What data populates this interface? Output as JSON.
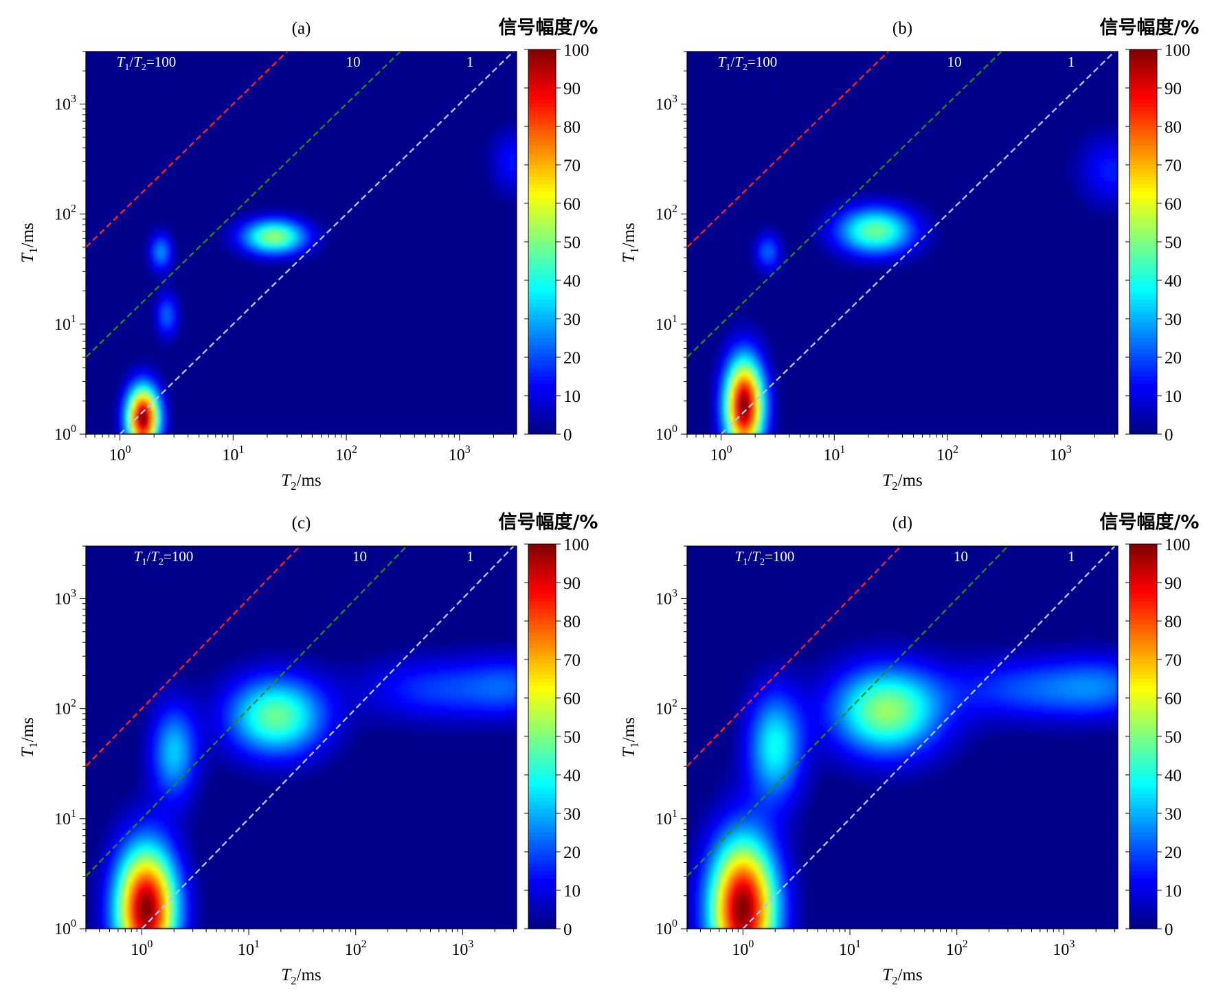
{
  "figure": {
    "colorbar": {
      "label": "信号幅度/%",
      "ticks": [
        "0",
        "10",
        "20",
        "30",
        "40",
        "50",
        "60",
        "70",
        "80",
        "90",
        "100"
      ],
      "range": [
        0,
        100
      ],
      "colormap": "jet"
    },
    "axis_labels": {
      "x_main": "T",
      "x_sub": "2",
      "x_unit": "/ms",
      "y_main": "T",
      "y_sub": "1",
      "y_unit": "/ms"
    },
    "ratio_labels": {
      "t1": "T",
      "sub1": "1",
      "slash": "/",
      "t2": "T",
      "sub2": "2",
      "eq100": "=100",
      "r10": "10",
      "r1": "1"
    },
    "tick_base": "10",
    "colors": {
      "background": "#00008b",
      "line_100": "#ff2020",
      "line_10": "#1e8c1e",
      "line_1": "#a8c8ff"
    }
  },
  "chart_data": [
    {
      "type": "heatmap",
      "title": "(a)",
      "x_scale": "log",
      "y_scale": "log",
      "xlim": [
        0.5,
        3200
      ],
      "ylim": [
        1,
        3000
      ],
      "xticks": [
        {
          "v": 1,
          "exp": "0"
        },
        {
          "v": 10,
          "exp": "1"
        },
        {
          "v": 100,
          "exp": "2"
        },
        {
          "v": 1000,
          "exp": "3"
        }
      ],
      "yticks": [
        {
          "v": 1,
          "exp": "0"
        },
        {
          "v": 10,
          "exp": "1"
        },
        {
          "v": 100,
          "exp": "2"
        },
        {
          "v": 1000,
          "exp": "3"
        }
      ],
      "ratio_lines": [
        100,
        10,
        1
      ],
      "peaks": [
        {
          "T2": 1.6,
          "T1": 1.4,
          "amplitude": 100,
          "spread_x": 0.1,
          "spread_y": 0.2
        },
        {
          "T2": 23,
          "T1": 62,
          "amplitude": 52,
          "spread_x": 0.2,
          "spread_y": 0.11
        },
        {
          "T2": 2.3,
          "T1": 45,
          "amplitude": 26,
          "spread_x": 0.07,
          "spread_y": 0.12
        },
        {
          "T2": 2.6,
          "T1": 12,
          "amplitude": 22,
          "spread_x": 0.07,
          "spread_y": 0.14
        },
        {
          "T2": 3000,
          "T1": 300,
          "amplitude": 14,
          "spread_x": 0.14,
          "spread_y": 0.2
        }
      ]
    },
    {
      "type": "heatmap",
      "title": "(b)",
      "x_scale": "log",
      "y_scale": "log",
      "xlim": [
        0.5,
        3200
      ],
      "ylim": [
        1,
        3000
      ],
      "xticks": [
        {
          "v": 1,
          "exp": "0"
        },
        {
          "v": 10,
          "exp": "1"
        },
        {
          "v": 100,
          "exp": "2"
        },
        {
          "v": 1000,
          "exp": "3"
        }
      ],
      "yticks": [
        {
          "v": 1,
          "exp": "0"
        },
        {
          "v": 10,
          "exp": "1"
        },
        {
          "v": 100,
          "exp": "2"
        },
        {
          "v": 1000,
          "exp": "3"
        }
      ],
      "ratio_lines": [
        100,
        10,
        1
      ],
      "peaks": [
        {
          "T2": 1.6,
          "T1": 1.8,
          "amplitude": 100,
          "spread_x": 0.12,
          "spread_y": 0.3
        },
        {
          "T2": 23,
          "T1": 70,
          "amplitude": 48,
          "spread_x": 0.24,
          "spread_y": 0.15
        },
        {
          "T2": 2.6,
          "T1": 45,
          "amplitude": 22,
          "spread_x": 0.08,
          "spread_y": 0.12
        },
        {
          "T2": 2800,
          "T1": 250,
          "amplitude": 15,
          "spread_x": 0.2,
          "spread_y": 0.22
        }
      ]
    },
    {
      "type": "heatmap",
      "title": "(c)",
      "x_scale": "log",
      "y_scale": "log",
      "xlim": [
        0.3,
        3200
      ],
      "ylim": [
        1,
        3000
      ],
      "xticks": [
        {
          "v": 1,
          "exp": "0"
        },
        {
          "v": 10,
          "exp": "1"
        },
        {
          "v": 100,
          "exp": "2"
        },
        {
          "v": 1000,
          "exp": "3"
        }
      ],
      "yticks": [
        {
          "v": 1,
          "exp": "0"
        },
        {
          "v": 10,
          "exp": "1"
        },
        {
          "v": 100,
          "exp": "2"
        },
        {
          "v": 1000,
          "exp": "3"
        }
      ],
      "ratio_lines": [
        100,
        10,
        1
      ],
      "peaks": [
        {
          "T2": 1.1,
          "T1": 1.5,
          "amplitude": 100,
          "spread_x": 0.2,
          "spread_y": 0.4
        },
        {
          "T2": 18,
          "T1": 85,
          "amplitude": 48,
          "spread_x": 0.32,
          "spread_y": 0.25
        },
        {
          "T2": 2.0,
          "T1": 40,
          "amplitude": 32,
          "spread_x": 0.15,
          "spread_y": 0.3
        },
        {
          "T2": 600,
          "T1": 150,
          "amplitude": 18,
          "spread_x": 0.5,
          "spread_y": 0.2
        },
        {
          "T2": 3000,
          "T1": 160,
          "amplitude": 15,
          "spread_x": 0.3,
          "spread_y": 0.2
        }
      ]
    },
    {
      "type": "heatmap",
      "title": "(d)",
      "x_scale": "log",
      "y_scale": "log",
      "xlim": [
        0.3,
        3200
      ],
      "ylim": [
        1,
        3000
      ],
      "xticks": [
        {
          "v": 1,
          "exp": "0"
        },
        {
          "v": 10,
          "exp": "1"
        },
        {
          "v": 100,
          "exp": "2"
        },
        {
          "v": 1000,
          "exp": "3"
        }
      ],
      "yticks": [
        {
          "v": 1,
          "exp": "0"
        },
        {
          "v": 10,
          "exp": "1"
        },
        {
          "v": 100,
          "exp": "2"
        },
        {
          "v": 1000,
          "exp": "3"
        }
      ],
      "ratio_lines": [
        100,
        10,
        1
      ],
      "peaks": [
        {
          "T2": 1.0,
          "T1": 1.5,
          "amplitude": 100,
          "spread_x": 0.22,
          "spread_y": 0.45
        },
        {
          "T2": 22,
          "T1": 95,
          "amplitude": 52,
          "spread_x": 0.36,
          "spread_y": 0.28
        },
        {
          "T2": 2.0,
          "T1": 45,
          "amplitude": 38,
          "spread_x": 0.18,
          "spread_y": 0.35
        },
        {
          "T2": 500,
          "T1": 150,
          "amplitude": 20,
          "spread_x": 0.55,
          "spread_y": 0.2
        },
        {
          "T2": 2500,
          "T1": 160,
          "amplitude": 16,
          "spread_x": 0.35,
          "spread_y": 0.2
        }
      ]
    }
  ]
}
